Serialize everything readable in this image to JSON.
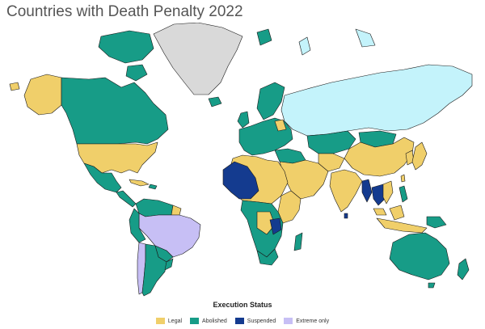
{
  "title": "Countries with Death Penalty 2022",
  "legend": {
    "title": "Execution Status",
    "items": [
      {
        "label": "Legal",
        "color": "#f0cf6a"
      },
      {
        "label": "Abolished",
        "color": "#179c87"
      },
      {
        "label": "Suspended",
        "color": "#143b8f"
      },
      {
        "label": "Extreme only",
        "color": "#c7bff5"
      }
    ]
  },
  "colors": {
    "no_data": "#d9d9d9",
    "russia": "#c4f3fb",
    "border": "#1a1a1a"
  }
}
